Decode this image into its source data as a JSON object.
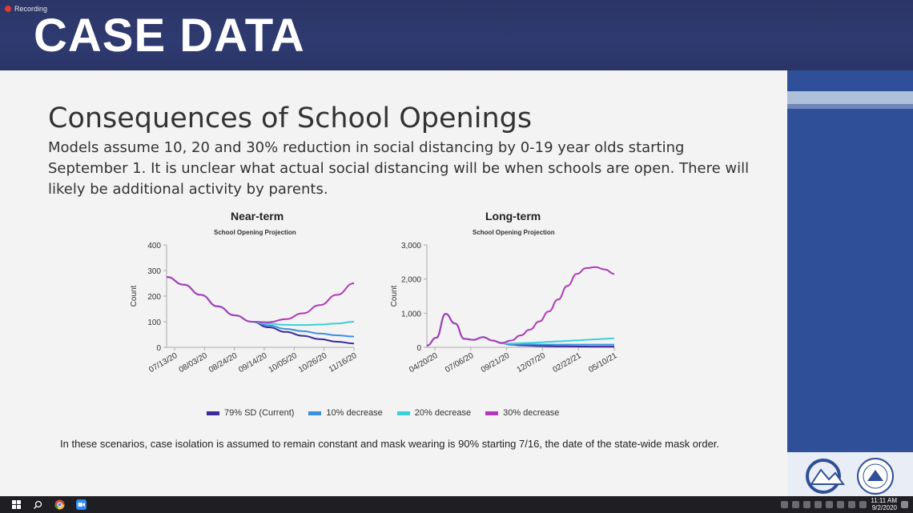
{
  "recording": {
    "label": "Recording"
  },
  "banner": {
    "title": "CASE DATA"
  },
  "slide": {
    "title": "Consequences of School Openings",
    "body": "Models assume 10, 20 and 30% reduction in social distancing by 0-19 year olds starting September 1. It is unclear what actual social distancing will be when schools are open. There will likely be additional activity by parents.",
    "footnote": "In these scenarios, case isolation is assumed to remain constant and mask wearing is 90% starting 7/16, the date of the state-wide mask order."
  },
  "legend": [
    {
      "label": "79% SD (Current)",
      "color": "#3a2a9a"
    },
    {
      "label": "10% decrease",
      "color": "#3d8fe0"
    },
    {
      "label": "20% decrease",
      "color": "#3ad0d8"
    },
    {
      "label": "30% decrease",
      "color": "#b03ab8"
    }
  ],
  "chart_data": [
    {
      "type": "line",
      "title": "Near-term",
      "subtitle": "School Opening Projection",
      "ylabel": "Count",
      "ylim": [
        0,
        400
      ],
      "yticks": [
        "0",
        "100",
        "200",
        "300",
        "400"
      ],
      "xticks": [
        "07/13/20",
        "08/03/20",
        "08/24/20",
        "09/14/20",
        "10/05/20",
        "10/26/20",
        "11/16/20"
      ],
      "x": [
        0,
        1,
        2,
        3,
        4,
        5,
        6,
        7,
        8,
        9,
        10,
        11
      ],
      "series": [
        {
          "name": "79% SD (Current)",
          "values": [
            275,
            245,
            205,
            160,
            125,
            100,
            78,
            60,
            45,
            32,
            22,
            15
          ]
        },
        {
          "name": "10% decrease",
          "values": [
            275,
            245,
            205,
            160,
            125,
            100,
            85,
            72,
            63,
            54,
            47,
            42
          ]
        },
        {
          "name": "20% decrease",
          "values": [
            275,
            245,
            205,
            160,
            125,
            100,
            92,
            88,
            87,
            89,
            93,
            100
          ]
        },
        {
          "name": "30% decrease",
          "values": [
            275,
            245,
            205,
            160,
            125,
            100,
            98,
            110,
            133,
            165,
            205,
            250
          ]
        }
      ]
    },
    {
      "type": "line",
      "title": "Long-term",
      "subtitle": "School Opening Projection",
      "ylabel": "Count",
      "ylim": [
        0,
        3000
      ],
      "yticks": [
        "0",
        "1,000",
        "2,000",
        "3,000"
      ],
      "xticks": [
        "04/20/20",
        "07/06/20",
        "09/21/20",
        "12/07/20",
        "02/22/21",
        "05/10/21"
      ],
      "x": [
        0,
        1,
        2,
        3,
        4,
        5,
        6,
        7,
        8,
        9,
        10,
        11,
        12,
        13,
        14,
        15,
        16,
        17,
        18,
        19,
        20
      ],
      "series": [
        {
          "name": "79% SD (Current)",
          "values": [
            50,
            280,
            980,
            700,
            250,
            220,
            300,
            200,
            120,
            80,
            60,
            50,
            40,
            35,
            30,
            28,
            25,
            22,
            20,
            20,
            20
          ]
        },
        {
          "name": "10% decrease",
          "values": [
            50,
            280,
            980,
            700,
            250,
            220,
            300,
            200,
            120,
            90,
            85,
            82,
            80,
            80,
            80,
            80,
            80,
            78,
            78,
            78,
            78
          ]
        },
        {
          "name": "20% decrease",
          "values": [
            50,
            280,
            980,
            700,
            250,
            220,
            300,
            200,
            120,
            110,
            120,
            130,
            145,
            160,
            175,
            190,
            205,
            220,
            235,
            250,
            265
          ]
        },
        {
          "name": "30% decrease",
          "values": [
            50,
            280,
            980,
            700,
            250,
            220,
            300,
            200,
            130,
            200,
            350,
            520,
            760,
            1050,
            1400,
            1800,
            2150,
            2320,
            2350,
            2280,
            2150
          ]
        }
      ]
    }
  ],
  "taskbar": {
    "time": "11:11 AM",
    "date": "9/2/2020",
    "icons": [
      "windows-start-icon",
      "search-icon",
      "chrome-icon",
      "zoom-icon"
    ]
  }
}
